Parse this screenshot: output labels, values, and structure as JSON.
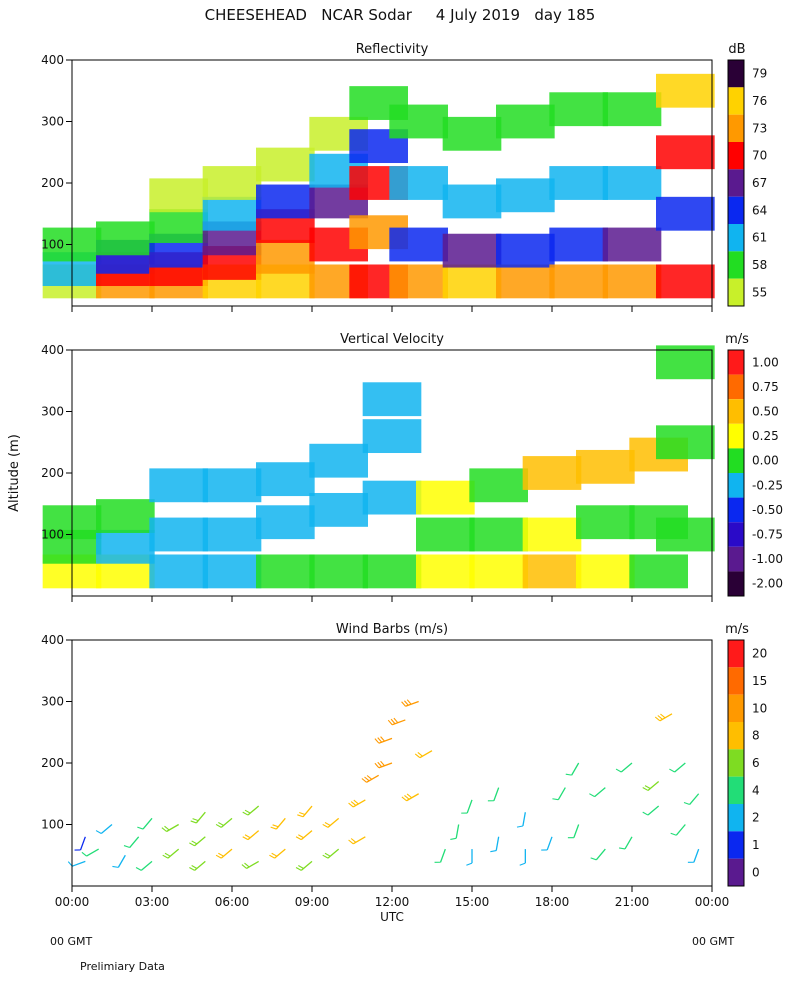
{
  "figure_title": "CHEESEHEAD   NCAR Sodar     4 July 2019   day 185",
  "y_axis_label": "Altitude (m)",
  "x_axis_label": "UTC",
  "footer": {
    "left_gmt": "00 GMT",
    "right_gmt": "00 GMT",
    "note": "Prelimiary Data"
  },
  "chart_data": [
    {
      "type": "heatmap",
      "title": "Reflectivity",
      "colorbar_unit": "dB",
      "xlabel": "",
      "ylabel": "Altitude (m)",
      "xlim": [
        0,
        24
      ],
      "ylim": [
        0,
        400
      ],
      "yticks": [
        100,
        200,
        300,
        400
      ],
      "colorbar": {
        "ticks": [
          "79",
          "76",
          "73",
          "70",
          "67",
          "64",
          "61",
          "58",
          "55"
        ],
        "colors": [
          "#2a0036",
          "#ffd200",
          "#ff9900",
          "#ff0000",
          "#5a1a8f",
          "#0a28f0",
          "#10b4f0",
          "#22dd22",
          "#c8f02a"
        ]
      },
      "cells": [
        [
          0,
          40,
          55
        ],
        [
          0,
          60,
          61
        ],
        [
          0,
          100,
          58
        ],
        [
          2,
          40,
          73
        ],
        [
          2,
          60,
          70
        ],
        [
          2,
          80,
          64
        ],
        [
          2,
          110,
          58
        ],
        [
          4,
          40,
          73
        ],
        [
          4,
          60,
          70
        ],
        [
          4,
          90,
          64
        ],
        [
          4,
          130,
          58
        ],
        [
          4,
          180,
          55
        ],
        [
          6,
          40,
          76
        ],
        [
          6,
          70,
          70
        ],
        [
          6,
          110,
          67
        ],
        [
          6,
          150,
          61
        ],
        [
          6,
          200,
          55
        ],
        [
          8,
          40,
          76
        ],
        [
          8,
          80,
          73
        ],
        [
          8,
          130,
          70
        ],
        [
          8,
          170,
          64
        ],
        [
          8,
          230,
          55
        ],
        [
          10,
          40,
          73
        ],
        [
          10,
          100,
          70
        ],
        [
          10,
          170,
          67
        ],
        [
          10,
          220,
          61
        ],
        [
          10,
          280,
          55
        ],
        [
          11.5,
          40,
          70
        ],
        [
          11.5,
          120,
          73
        ],
        [
          11.5,
          200,
          70
        ],
        [
          11.5,
          260,
          64
        ],
        [
          11.5,
          330,
          58
        ],
        [
          13,
          40,
          73
        ],
        [
          13,
          100,
          64
        ],
        [
          13,
          200,
          61
        ],
        [
          13,
          300,
          58
        ],
        [
          15,
          40,
          76
        ],
        [
          15,
          90,
          67
        ],
        [
          15,
          170,
          61
        ],
        [
          15,
          280,
          58
        ],
        [
          17,
          40,
          73
        ],
        [
          17,
          90,
          64
        ],
        [
          17,
          180,
          61
        ],
        [
          17,
          300,
          58
        ],
        [
          19,
          40,
          73
        ],
        [
          19,
          100,
          64
        ],
        [
          19,
          200,
          61
        ],
        [
          19,
          320,
          58
        ],
        [
          21,
          40,
          73
        ],
        [
          21,
          100,
          67
        ],
        [
          21,
          200,
          61
        ],
        [
          21,
          320,
          58
        ],
        [
          23,
          40,
          70
        ],
        [
          23,
          150,
          64
        ],
        [
          23,
          250,
          70
        ],
        [
          23,
          350,
          76
        ]
      ]
    },
    {
      "type": "heatmap",
      "title": "Vertical Velocity",
      "colorbar_unit": "m/s",
      "xlabel": "",
      "ylabel": "Altitude (m)",
      "xlim": [
        0,
        24
      ],
      "ylim": [
        0,
        400
      ],
      "yticks": [
        100,
        200,
        300,
        400
      ],
      "colorbar": {
        "ticks": [
          "1.00",
          "0.75",
          "0.50",
          "0.25",
          "0.00",
          "-0.25",
          "-0.50",
          "-0.75",
          "-1.00",
          "-2.00"
        ],
        "colors": [
          "#ff1a1a",
          "#ff6a00",
          "#ffbe00",
          "#ffff00",
          "#22dd22",
          "#10b4f0",
          "#0a28f0",
          "#2a0ac8",
          "#5a1a8f",
          "#2a0036"
        ]
      },
      "cells": [
        [
          0,
          40,
          0.25
        ],
        [
          0,
          80,
          0.0
        ],
        [
          0,
          120,
          0.0
        ],
        [
          2,
          40,
          0.25
        ],
        [
          2,
          80,
          -0.25
        ],
        [
          2,
          130,
          0.0
        ],
        [
          4,
          40,
          -0.25
        ],
        [
          4,
          100,
          -0.25
        ],
        [
          4,
          180,
          -0.25
        ],
        [
          6,
          40,
          -0.25
        ],
        [
          6,
          100,
          -0.25
        ],
        [
          6,
          180,
          -0.25
        ],
        [
          8,
          40,
          0.0
        ],
        [
          8,
          120,
          -0.25
        ],
        [
          8,
          190,
          -0.25
        ],
        [
          10,
          40,
          0.0
        ],
        [
          10,
          140,
          -0.25
        ],
        [
          10,
          220,
          -0.25
        ],
        [
          12,
          40,
          0.0
        ],
        [
          12,
          160,
          -0.25
        ],
        [
          12,
          260,
          -0.25
        ],
        [
          12,
          320,
          -0.25
        ],
        [
          14,
          40,
          0.25
        ],
        [
          14,
          100,
          0.0
        ],
        [
          14,
          160,
          0.25
        ],
        [
          16,
          40,
          0.25
        ],
        [
          16,
          100,
          0.0
        ],
        [
          16,
          180,
          0.0
        ],
        [
          18,
          40,
          0.5
        ],
        [
          18,
          100,
          0.25
        ],
        [
          18,
          200,
          0.5
        ],
        [
          20,
          40,
          0.25
        ],
        [
          20,
          120,
          0.0
        ],
        [
          20,
          210,
          0.5
        ],
        [
          22,
          40,
          0.0
        ],
        [
          22,
          120,
          0.0
        ],
        [
          22,
          230,
          0.5
        ],
        [
          23,
          100,
          0.0
        ],
        [
          23,
          250,
          0.0
        ],
        [
          23,
          380,
          0.0
        ]
      ]
    },
    {
      "type": "scatter",
      "title": "Wind Barbs (m/s)",
      "colorbar_unit": "m/s",
      "xlabel": "UTC",
      "ylabel": "Altitude (m)",
      "xlim": [
        0,
        24
      ],
      "ylim": [
        0,
        400
      ],
      "xticks": [
        "00:00",
        "03:00",
        "06:00",
        "09:00",
        "12:00",
        "15:00",
        "18:00",
        "21:00",
        "00:00"
      ],
      "yticks": [
        100,
        200,
        300,
        400
      ],
      "colorbar": {
        "ticks": [
          "20",
          "15",
          "10",
          "8",
          "6",
          "4",
          "2",
          "1",
          "0"
        ],
        "colors": [
          "#ff1a1a",
          "#ff6a00",
          "#ff9900",
          "#ffbe00",
          "#7edc22",
          "#22dd77",
          "#10b4f0",
          "#0a28f0",
          "#5a1a8f"
        ]
      },
      "barbs": [
        [
          0.5,
          40,
          2,
          250
        ],
        [
          0.5,
          80,
          1,
          200
        ],
        [
          1,
          60,
          3,
          240
        ],
        [
          1.5,
          100,
          2,
          230
        ],
        [
          2,
          50,
          2,
          210
        ],
        [
          2.5,
          80,
          3,
          220
        ],
        [
          3,
          40,
          4,
          230
        ],
        [
          3,
          110,
          3,
          220
        ],
        [
          4,
          60,
          5,
          230
        ],
        [
          4,
          100,
          5,
          240
        ],
        [
          5,
          40,
          6,
          230
        ],
        [
          5,
          80,
          6,
          230
        ],
        [
          5,
          120,
          6,
          220
        ],
        [
          6,
          60,
          7,
          230
        ],
        [
          6,
          110,
          6,
          230
        ],
        [
          7,
          40,
          6,
          240
        ],
        [
          7,
          90,
          7,
          230
        ],
        [
          7,
          130,
          6,
          230
        ],
        [
          8,
          60,
          7,
          230
        ],
        [
          8,
          110,
          7,
          220
        ],
        [
          9,
          40,
          6,
          230
        ],
        [
          9,
          90,
          7,
          230
        ],
        [
          9,
          130,
          7,
          220
        ],
        [
          10,
          60,
          6,
          230
        ],
        [
          10,
          110,
          7,
          230
        ],
        [
          11,
          80,
          7,
          240
        ],
        [
          11,
          140,
          8,
          240
        ],
        [
          11.5,
          180,
          9,
          240
        ],
        [
          12,
          200,
          10,
          250
        ],
        [
          12,
          240,
          10,
          250
        ],
        [
          12.5,
          270,
          10,
          250
        ],
        [
          13,
          300,
          9,
          250
        ],
        [
          13,
          150,
          8,
          240
        ],
        [
          13.5,
          220,
          7,
          240
        ],
        [
          14,
          60,
          3,
          200
        ],
        [
          14.5,
          100,
          3,
          190
        ],
        [
          15,
          60,
          2,
          180
        ],
        [
          15,
          140,
          3,
          200
        ],
        [
          16,
          80,
          2,
          190
        ],
        [
          16,
          160,
          3,
          200
        ],
        [
          17,
          60,
          2,
          180
        ],
        [
          17,
          120,
          2,
          190
        ],
        [
          18,
          80,
          2,
          200
        ],
        [
          18.5,
          160,
          3,
          210
        ],
        [
          19,
          100,
          4,
          200
        ],
        [
          19,
          200,
          3,
          210
        ],
        [
          20,
          60,
          3,
          220
        ],
        [
          20,
          160,
          4,
          230
        ],
        [
          21,
          80,
          4,
          210
        ],
        [
          21,
          200,
          4,
          230
        ],
        [
          22,
          130,
          4,
          230
        ],
        [
          22,
          170,
          5,
          230
        ],
        [
          22.5,
          280,
          8,
          240
        ],
        [
          23,
          100,
          3,
          220
        ],
        [
          23,
          200,
          4,
          230
        ],
        [
          23.5,
          60,
          2,
          200
        ],
        [
          23.5,
          150,
          4,
          220
        ]
      ]
    }
  ]
}
